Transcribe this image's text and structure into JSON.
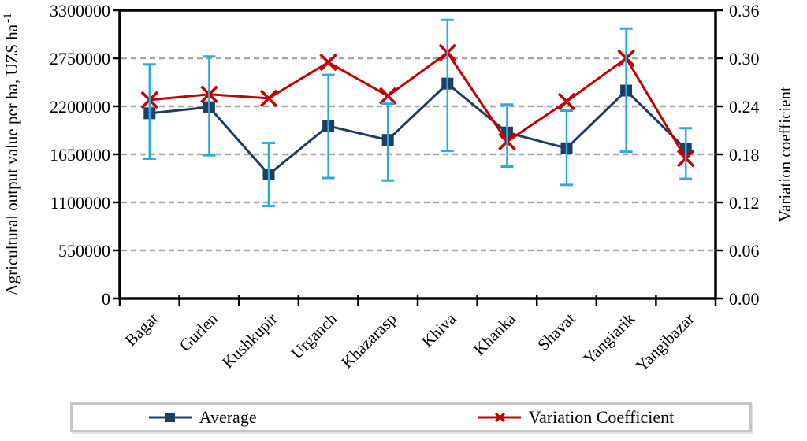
{
  "colors": {
    "average": "#1f3c61",
    "variation": "#c40000",
    "error_bar": "#29abe2",
    "gridline": "#a6a6a6",
    "axis": "#000000"
  },
  "chart_data": {
    "type": "line",
    "categories": [
      "Bagat",
      "Gurlen",
      "Kushkupir",
      "Urganch",
      "Khazarasp",
      "Khiva",
      "Khanka",
      "Shavat",
      "Yangiarik",
      "Yangibazar"
    ],
    "series": [
      {
        "name": "Average",
        "axis": "left",
        "marker": "square",
        "color": "average",
        "values": [
          2120000,
          2190000,
          1420000,
          1975000,
          1815000,
          2460000,
          1900000,
          1720000,
          2380000,
          1710000
        ]
      },
      {
        "name": "Variation Coefficient",
        "axis": "right",
        "marker": "x",
        "color": "variation",
        "values": [
          0.248,
          0.255,
          0.25,
          0.295,
          0.253,
          0.307,
          0.196,
          0.246,
          0.3,
          0.175
        ]
      }
    ],
    "error_bars": {
      "series": "Average",
      "color": "error_bar",
      "upper": [
        2680000,
        2770000,
        1780000,
        2560000,
        2230000,
        3190000,
        2220000,
        2150000,
        3090000,
        1950000
      ],
      "lower": [
        1600000,
        1640000,
        1060000,
        1380000,
        1350000,
        1690000,
        1510000,
        1300000,
        1680000,
        1370000
      ]
    },
    "left_axis": {
      "title": "Agricultural output value per ha, UZS ha",
      "title_superscript": "-1",
      "min": 0,
      "max": 3300000,
      "step": 550000,
      "tick_labels": [
        "3300000",
        "2750000",
        "2200000",
        "1650000",
        "1100000",
        "550000",
        "0"
      ]
    },
    "right_axis": {
      "title": "Variation coefficient",
      "min": 0,
      "max": 0.36,
      "step": 0.06,
      "tick_labels": [
        "0.36",
        "0.30",
        "0.24",
        "0.18",
        "0.12",
        "0.06",
        "0.00"
      ]
    },
    "grid": true,
    "legend": {
      "position": "bottom",
      "items": [
        "Average",
        "Variation Coefficient"
      ]
    }
  }
}
